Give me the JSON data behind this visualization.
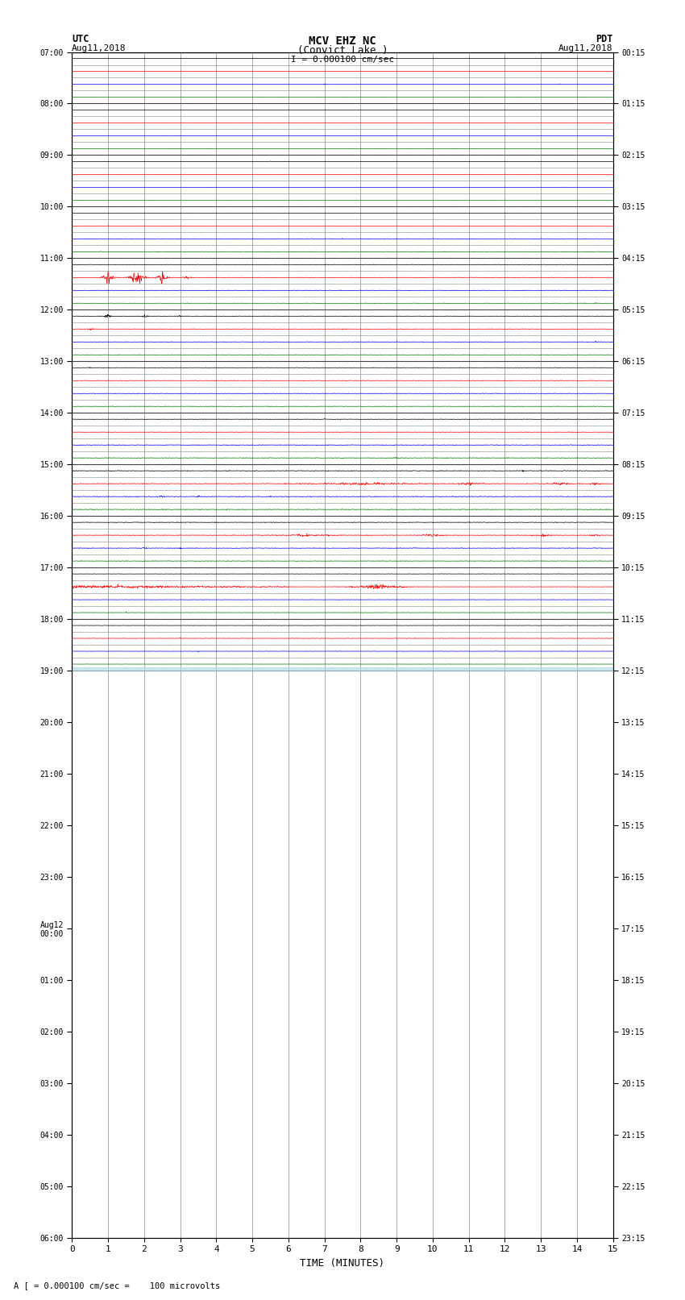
{
  "title_line1": "MCV EHZ NC",
  "title_line2": "(Convict Lake )",
  "title_line3": "I = 0.000100 cm/sec",
  "label_left": "UTC",
  "label_left2": "Aug11,2018",
  "label_right": "PDT",
  "label_right2": "Aug11,2018",
  "xlabel": "TIME (MINUTES)",
  "footnote": "A [ = 0.000100 cm/sec =    100 microvolts",
  "bg_color": "#ffffff",
  "grid_color_h": "#888888",
  "grid_color_v": "#aaaaaa",
  "figsize": [
    8.5,
    16.13
  ],
  "dpi": 100,
  "n_rows": 48,
  "row_colors": [
    "black",
    "red",
    "blue",
    "green",
    "black",
    "red",
    "blue",
    "green",
    "black",
    "red",
    "blue",
    "green",
    "black",
    "red",
    "blue",
    "green",
    "black",
    "red",
    "blue",
    "green",
    "black",
    "red",
    "blue",
    "green",
    "black",
    "red",
    "blue",
    "green",
    "black",
    "red",
    "blue",
    "green",
    "black",
    "red",
    "blue",
    "green",
    "black",
    "red",
    "blue",
    "green",
    "black",
    "red",
    "blue",
    "green",
    "black",
    "red",
    "blue",
    "green"
  ],
  "utc_hour_labels": [
    "07:00",
    "08:00",
    "09:00",
    "10:00",
    "11:00",
    "12:00",
    "13:00",
    "14:00",
    "15:00",
    "16:00",
    "17:00",
    "18:00",
    "19:00",
    "20:00",
    "21:00",
    "22:00",
    "23:00",
    "Aug12\n00:00",
    "01:00",
    "02:00",
    "03:00",
    "04:00",
    "05:00",
    "06:00"
  ],
  "pdt_hour_labels": [
    "00:15",
    "01:15",
    "02:15",
    "03:15",
    "04:15",
    "05:15",
    "06:15",
    "07:15",
    "08:15",
    "09:15",
    "10:15",
    "11:15",
    "12:15",
    "13:15",
    "14:15",
    "15:15",
    "16:15",
    "17:15",
    "18:15",
    "19:15",
    "20:15",
    "21:15",
    "22:15",
    "23:15"
  ],
  "noise_levels": [
    0.008,
    0.008,
    0.008,
    0.008,
    0.008,
    0.008,
    0.008,
    0.008,
    0.008,
    0.008,
    0.008,
    0.008,
    0.008,
    0.008,
    0.02,
    0.02,
    0.02,
    0.02,
    0.02,
    0.02,
    0.02,
    0.02,
    0.02,
    0.02,
    0.02,
    0.02,
    0.02,
    0.02,
    0.02,
    0.02,
    0.03,
    0.03,
    0.03,
    0.03,
    0.03,
    0.03,
    0.025,
    0.025,
    0.025,
    0.025,
    0.015,
    0.015,
    0.015,
    0.015,
    0.015,
    0.015,
    0.01,
    0.01
  ]
}
